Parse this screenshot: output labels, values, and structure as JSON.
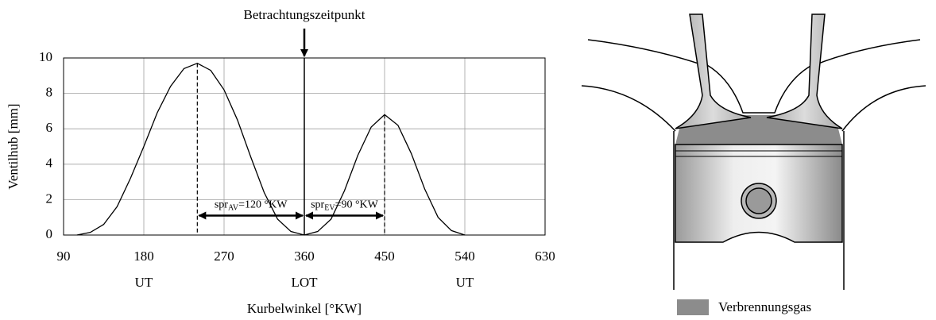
{
  "chart_data": {
    "type": "line",
    "xlabel": "Kurbelwinkel [°KW]",
    "ylabel": "Ventilhub [mm]",
    "xlim": [
      90,
      630
    ],
    "xticks": [
      90,
      180,
      270,
      360,
      450,
      540,
      630
    ],
    "ylim": [
      0,
      10
    ],
    "yticks": [
      0,
      2,
      4,
      6,
      8,
      10
    ],
    "grid": true,
    "x_labels2": [
      {
        "value": 180,
        "label": "UT"
      },
      {
        "value": 360,
        "label": "LOT"
      },
      {
        "value": 540,
        "label": "UT"
      }
    ],
    "event": {
      "x": 360,
      "label": "Betrachtungszeitpunkt"
    },
    "series": [
      {
        "color": "#000000",
        "x": [
          105,
          120,
          135,
          150,
          165,
          180,
          195,
          210,
          225,
          240,
          255,
          270,
          285,
          300,
          315,
          330,
          345,
          360
        ],
        "values": [
          0,
          0.15,
          0.6,
          1.6,
          3.2,
          5.0,
          6.9,
          8.4,
          9.4,
          9.7,
          9.3,
          8.2,
          6.5,
          4.4,
          2.4,
          0.9,
          0.2,
          0
        ]
      },
      {
        "color": "#000000",
        "x": [
          360,
          375,
          390,
          405,
          420,
          435,
          450,
          465,
          480,
          495,
          510,
          525,
          540
        ],
        "values": [
          0,
          0.2,
          0.9,
          2.5,
          4.5,
          6.1,
          6.8,
          6.2,
          4.6,
          2.6,
          1.0,
          0.25,
          0
        ]
      }
    ],
    "spans": [
      {
        "from": 240,
        "to": 360,
        "y": 1.1,
        "text": "spr",
        "sub": "AV",
        "rest": "=120 °KW"
      },
      {
        "from": 360,
        "to": 450,
        "y": 1.1,
        "text": "spr",
        "sub": "EV",
        "rest": "=90 °KW"
      }
    ]
  },
  "diagram": {
    "legend": {
      "label": "Verbrennungsgas",
      "color": "#8c8c8c"
    }
  }
}
